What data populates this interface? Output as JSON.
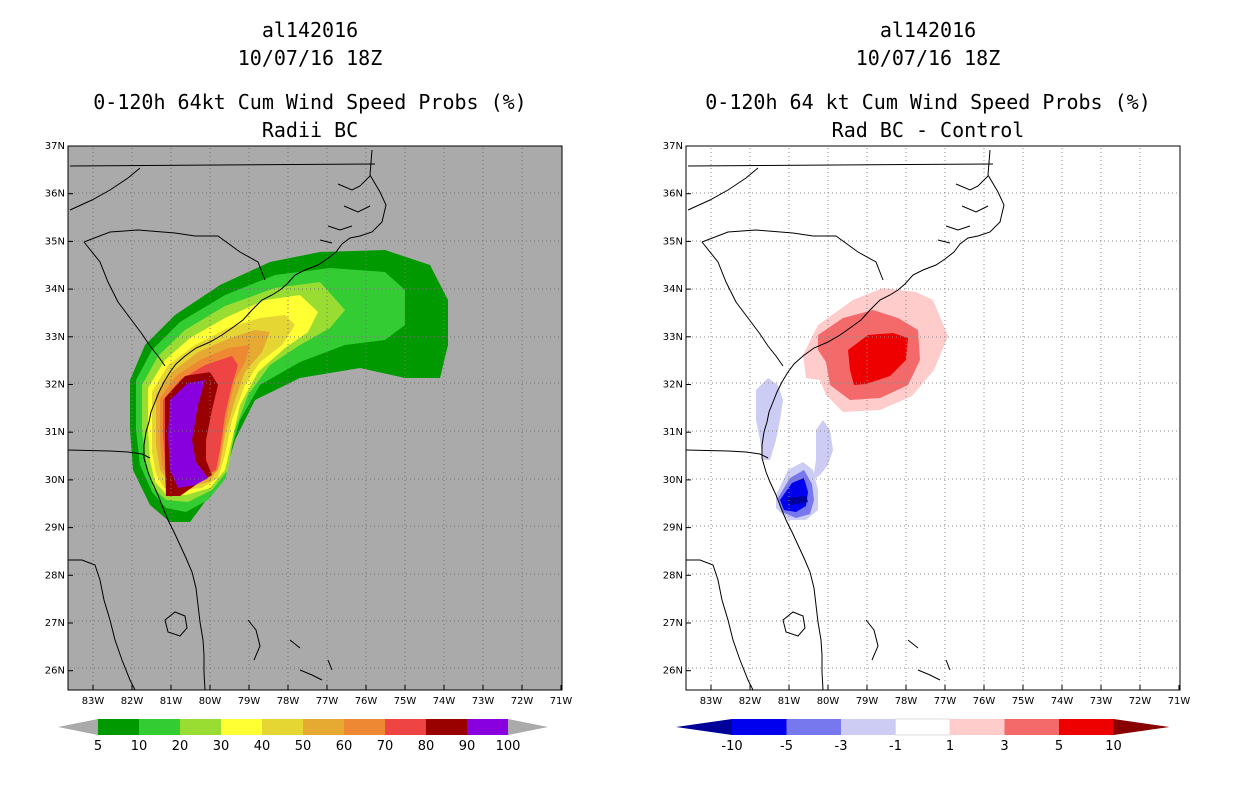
{
  "left_panel": {
    "storm_id": "al142016",
    "datetime": "10/07/16 18Z",
    "title": "0-120h 64kt Cum Wind Speed Probs (%)",
    "subtitle": "Radii BC",
    "colorbar": {
      "labels": [
        "5",
        "10",
        "20",
        "30",
        "40",
        "50",
        "60",
        "70",
        "80",
        "90",
        "100"
      ],
      "colors": [
        "#009900",
        "#33cc33",
        "#99dd33",
        "#ffff33",
        "#e6d633",
        "#e6aa33",
        "#ee8833",
        "#ee4444",
        "#990000",
        "#8800dd"
      ]
    }
  },
  "right_panel": {
    "storm_id": "al142016",
    "datetime": "10/07/16 18Z",
    "title": "0-120h 64 kt Cum Wind Speed Probs (%)",
    "subtitle": "Rad BC - Control",
    "colorbar": {
      "labels": [
        "-10",
        "-5",
        "-3",
        "-1",
        "1",
        "3",
        "5",
        "10"
      ],
      "colors": [
        "#000099",
        "#0000ee",
        "#7777ee",
        "#ccccf5",
        "#ffffff",
        "#ffcccc",
        "#f46a6a",
        "#ee0000",
        "#880000"
      ]
    }
  },
  "axes": {
    "lat_labels": [
      "37N",
      "36N",
      "35N",
      "34N",
      "33N",
      "32N",
      "31N",
      "30N",
      "29N",
      "28N",
      "27N",
      "26N"
    ],
    "lon_labels": [
      "83W",
      "82W",
      "81W",
      "80W",
      "79W",
      "78W",
      "77W",
      "76W",
      "75W",
      "74W",
      "73W",
      "72W",
      "71W"
    ]
  }
}
